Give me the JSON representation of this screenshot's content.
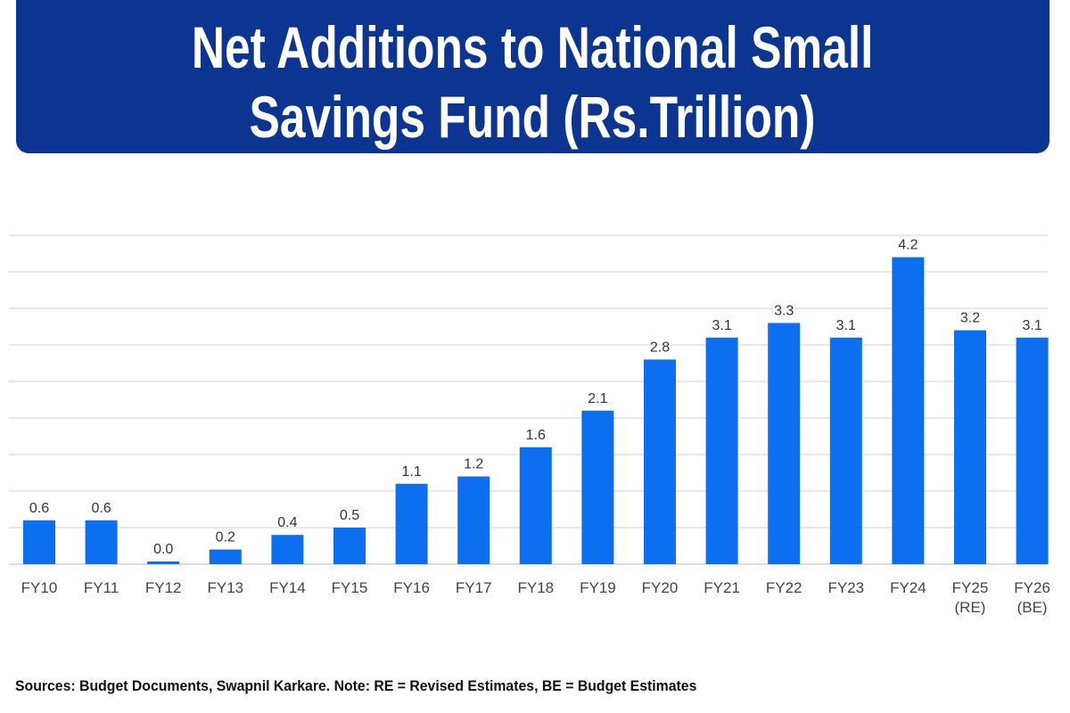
{
  "header": {
    "title_line1": "Net Additions to National Small",
    "title_line2": "Savings Fund (Rs.Trillion)"
  },
  "footer": {
    "source": "Sources: Budget Documents, Swapnil Karkare. Note: RE = Revised Estimates, BE = Budget Estimates"
  },
  "chart_data": {
    "type": "bar",
    "title": "Net Additions to National Small Savings Fund (Rs.Trillion)",
    "categories": [
      "FY10",
      "FY11",
      "FY12",
      "FY13",
      "FY14",
      "FY15",
      "FY16",
      "FY17",
      "FY18",
      "FY19",
      "FY20",
      "FY21",
      "FY22",
      "FY23",
      "FY24",
      "FY25 (RE)",
      "FY26 (BE)"
    ],
    "values": [
      0.6,
      0.6,
      0.0,
      0.2,
      0.4,
      0.5,
      1.1,
      1.2,
      1.6,
      2.1,
      2.8,
      3.1,
      3.3,
      3.1,
      4.2,
      3.2,
      3.1
    ],
    "data_labels": [
      "0.6",
      "0.6",
      "0.0",
      "0.2",
      "0.4",
      "0.5",
      "1.1",
      "1.2",
      "1.6",
      "2.1",
      "2.8",
      "3.1",
      "3.3",
      "3.1",
      "4.2",
      "3.2",
      "3.1"
    ],
    "xlabel": "",
    "ylabel": "",
    "ylim": [
      0,
      4.5
    ],
    "grid_step": 0.5,
    "grid": true,
    "y_tick_labels_shown": false,
    "legend": "none",
    "bar_color": "#0b6ff0",
    "header_color": "#0b3591"
  }
}
